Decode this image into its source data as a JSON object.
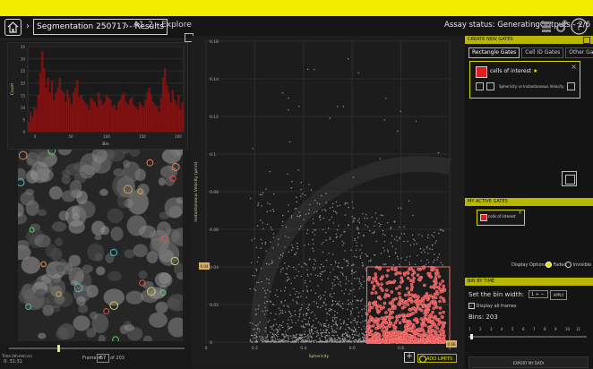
{
  "header": {
    "breadcrumb": [
      "Segmentation 250717 - Results",
      "A1_2 - Explore"
    ],
    "assay_status": "Assay status: GeneratingOutputs - 2/6",
    "icons": [
      "home-icon",
      "chevron-right-icon",
      "grid-icon",
      "gear-icon",
      "help-icon"
    ]
  },
  "histogram": {
    "yticks": [
      "35",
      "30",
      "25",
      "20",
      "15",
      "10",
      "5",
      "0"
    ],
    "xticks": [
      "0",
      "50",
      "100",
      "150",
      "200"
    ],
    "xlabel": "Bin",
    "ylabel": "Count",
    "values": [
      4,
      8,
      6,
      10,
      9,
      15,
      24,
      33,
      26,
      18,
      22,
      16,
      21,
      13,
      16,
      18,
      22,
      17,
      16,
      12,
      17,
      14,
      11,
      16,
      18,
      21,
      14,
      15,
      13,
      12,
      11,
      9,
      14,
      13,
      12,
      10,
      16,
      13,
      11,
      12,
      15,
      14,
      13,
      10,
      11,
      9,
      12,
      13,
      15,
      16,
      12,
      11,
      13,
      14,
      11,
      10,
      9,
      12,
      11,
      10,
      13,
      16,
      18,
      15,
      12,
      11,
      10,
      8,
      14,
      22,
      26,
      19,
      16,
      12,
      17,
      13,
      11,
      15,
      9,
      12
    ],
    "color": "#7a0e0e"
  },
  "timeline": {
    "time_label": "Time (hh:mm:ss)",
    "time_value": "0: 31:31",
    "frame_label": "Frame #",
    "frame_value": "57",
    "frame_total": "of 203"
  },
  "scatter": {
    "ylabel": "Instantaneous Velocity (μm/s)",
    "xlabel": "Sphericity",
    "yticks": [
      "0.16",
      "0.14",
      "0.12",
      "0.1",
      "0.08",
      "0.06",
      "0.04",
      "0.02",
      "0"
    ],
    "xticks": [
      "0",
      "0.2",
      "0.4",
      "0.6",
      "0.8",
      "1"
    ],
    "gate_y_marker": "0.04",
    "gate_x_marker": "0.66",
    "add_limits_label": "ADD LIMITS",
    "gate_color": "#ff6a6a"
  },
  "create_gates": {
    "title": "CREATE NEW GATES",
    "tabs": [
      "Rectangle Gates",
      "Cell ID Gates",
      "Other Gates"
    ],
    "gate_name": "cells of interest",
    "gate_axis": "Sphericity vs Instantaneous Velocity",
    "gate_swatch": "#e01e1e"
  },
  "active_gates": {
    "title": "MY ACTIVE GATES",
    "chip_label": "cells of interest",
    "display_options_label": "Display Options",
    "option_faded": "Faded",
    "option_invisible": "Invisible"
  },
  "bin_by_time": {
    "title": "BIN BY TIME",
    "set_bin_label": "Set the bin width:",
    "bin_value": "1",
    "apply_label": "APPLY",
    "display_all_frames": "Display all frames",
    "bins_label": "Bins: 203",
    "bin_numbers": [
      "1",
      "2",
      "3",
      "4",
      "5",
      "6",
      "7",
      "8",
      "9",
      "10",
      "11"
    ],
    "export_label": "EXPORT MY DATA"
  },
  "colors": {
    "accent": "#f2ea00",
    "gate_panel": "#b8b800"
  }
}
